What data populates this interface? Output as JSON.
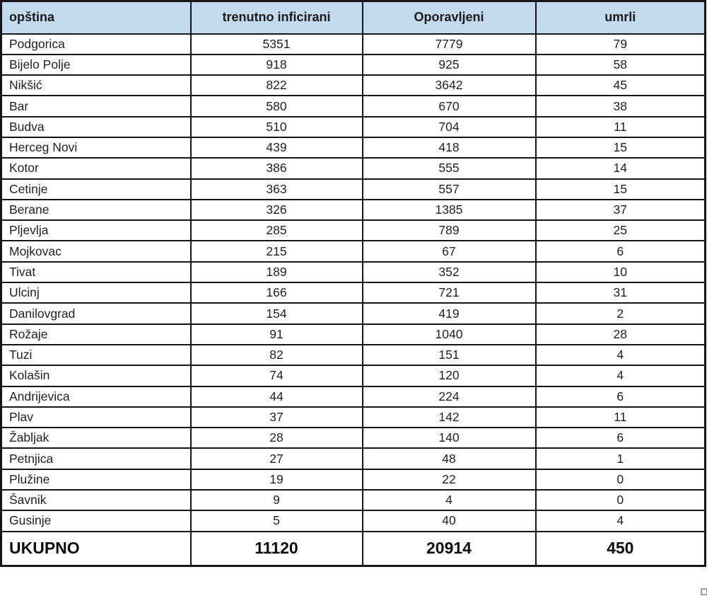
{
  "colors": {
    "header_bg": "#c2d9ee",
    "border": "#151515",
    "text": "#1a1a1a"
  },
  "chart_data": {
    "type": "table",
    "columns": [
      "opština",
      "trenutno inficirani",
      "Oporavljeni",
      "umrli"
    ],
    "rows": [
      [
        "Podgorica",
        5351,
        7779,
        79
      ],
      [
        "Bijelo Polje",
        918,
        925,
        58
      ],
      [
        "Nikšić",
        822,
        3642,
        45
      ],
      [
        "Bar",
        580,
        670,
        38
      ],
      [
        "Budva",
        510,
        704,
        11
      ],
      [
        "Herceg Novi",
        439,
        418,
        15
      ],
      [
        "Kotor",
        386,
        555,
        14
      ],
      [
        "Cetinje",
        363,
        557,
        15
      ],
      [
        "Berane",
        326,
        1385,
        37
      ],
      [
        "Pljevlja",
        285,
        789,
        25
      ],
      [
        "Mojkovac",
        215,
        67,
        6
      ],
      [
        "Tivat",
        189,
        352,
        10
      ],
      [
        "Ulcinj",
        166,
        721,
        31
      ],
      [
        "Danilovgrad",
        154,
        419,
        2
      ],
      [
        "Rožaje",
        91,
        1040,
        28
      ],
      [
        "Tuzi",
        82,
        151,
        4
      ],
      [
        "Kolašin",
        74,
        120,
        4
      ],
      [
        "Andrijevica",
        44,
        224,
        6
      ],
      [
        "Plav",
        37,
        142,
        11
      ],
      [
        "Žabljak",
        28,
        140,
        6
      ],
      [
        "Petnjica",
        27,
        48,
        1
      ],
      [
        "Plužine",
        19,
        22,
        0
      ],
      [
        "Šavnik",
        9,
        4,
        0
      ],
      [
        "Gusinje",
        5,
        40,
        4
      ]
    ],
    "total_row": [
      "UKUPNO",
      11120,
      20914,
      450
    ]
  }
}
